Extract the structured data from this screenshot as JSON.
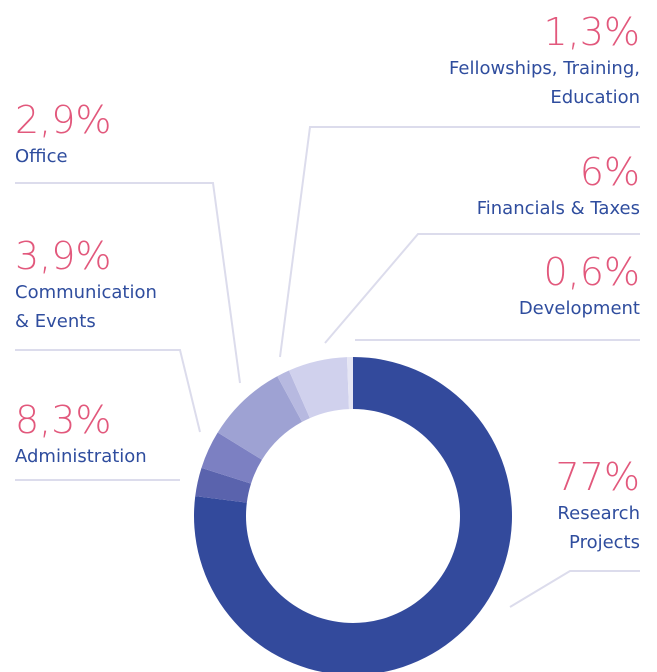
{
  "chart_data": {
    "type": "donut",
    "categories": [
      "Research Projects",
      "Office",
      "Communication & Events",
      "Administration",
      "Fellowships, Training, Education",
      "Financials & Taxes",
      "Development"
    ],
    "values": [
      77,
      2.9,
      3.9,
      8.3,
      1.3,
      6,
      0.6
    ],
    "value_labels": [
      "77%",
      "2,9%",
      "3,9%",
      "8,3%",
      "1,3%",
      "6%",
      "0,6%"
    ],
    "colors": [
      "#334a9c",
      "#5a63ad",
      "#7c80c2",
      "#9ea2d3",
      "#b7b9e0",
      "#d0d1ed",
      "#e6e6f4"
    ]
  }
}
